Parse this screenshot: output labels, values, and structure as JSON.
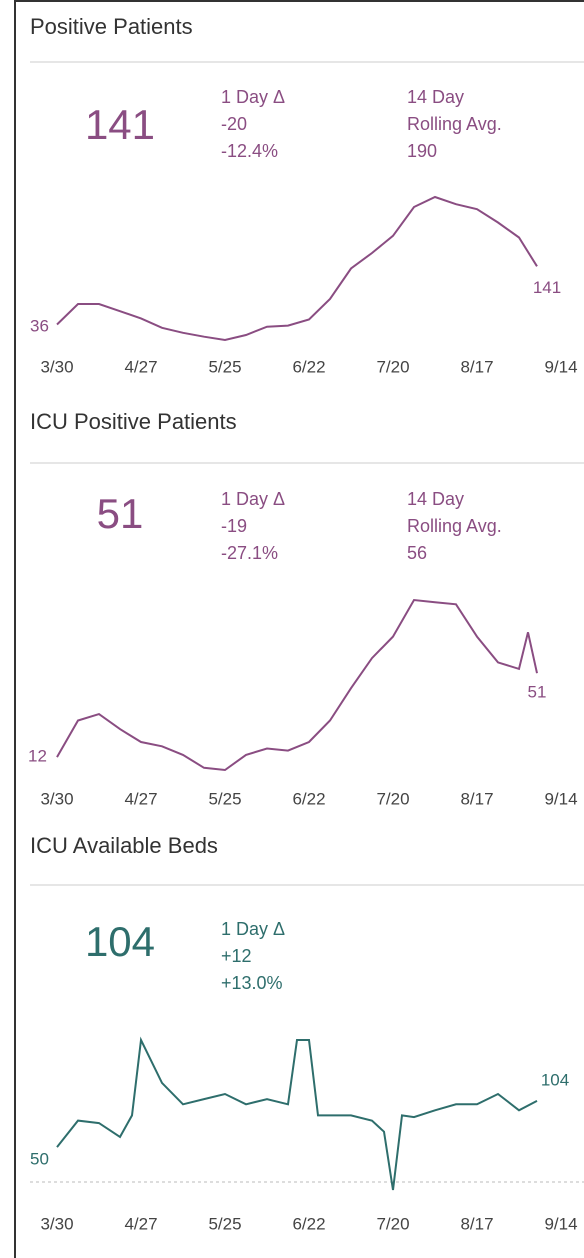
{
  "panels": [
    {
      "title": "Positive Patients",
      "current": 141,
      "delta_label": "1 Day Δ",
      "delta": "-20",
      "delta_pct": "-12.4%",
      "avg_label": [
        "14 Day",
        "Rolling Avg."
      ],
      "avg": 190,
      "chart_data": {
        "type": "line",
        "color": "#8a4d82",
        "x": [
          "3/30",
          "4/6",
          "4/13",
          "4/20",
          "4/27",
          "5/4",
          "5/11",
          "5/18",
          "5/25",
          "6/1",
          "6/8",
          "6/15",
          "6/22",
          "6/29",
          "7/6",
          "7/13",
          "7/20",
          "7/27",
          "8/3",
          "8/10",
          "8/17",
          "8/24",
          "8/31",
          "9/6"
        ],
        "values": [
          36,
          73,
          73,
          60,
          47,
          30,
          21,
          14,
          8,
          17,
          32,
          34,
          45,
          82,
          137,
          165,
          196,
          248,
          266,
          253,
          244,
          220,
          193,
          141
        ],
        "xticks": [
          "3/30",
          "4/27",
          "5/25",
          "6/22",
          "7/20",
          "8/17",
          "9/14"
        ]
      }
    },
    {
      "title": "ICU Positive Patients",
      "current": 51,
      "delta_label": "1 Day Δ",
      "delta": "-19",
      "delta_pct": "-27.1%",
      "avg_label": [
        "14 Day",
        "Rolling Avg."
      ],
      "avg": 56,
      "chart_data": {
        "type": "line",
        "color": "#8a4d82",
        "x": [
          "3/30",
          "4/6",
          "4/13",
          "4/20",
          "4/27",
          "5/4",
          "5/11",
          "5/18",
          "5/25",
          "6/1",
          "6/8",
          "6/15",
          "6/22",
          "6/29",
          "7/6",
          "7/13",
          "7/20",
          "7/27",
          "8/3",
          "8/10",
          "8/17",
          "8/24",
          "8/31",
          "9/3",
          "9/6"
        ],
        "values": [
          12,
          29,
          32,
          25,
          19,
          17,
          13,
          7,
          6,
          13,
          16,
          15,
          19,
          29,
          44,
          58,
          68,
          85,
          84,
          83,
          68,
          56,
          53,
          70,
          51
        ],
        "xticks": [
          "3/30",
          "4/27",
          "5/25",
          "6/22",
          "7/20",
          "8/17",
          "9/14"
        ]
      }
    },
    {
      "title": "ICU Available Beds",
      "current": 104,
      "delta_label": "1 Day Δ",
      "delta": "+12",
      "delta_pct": "+13.0%",
      "chart_data": {
        "type": "line",
        "color": "#2e6e6c",
        "x": [
          "3/30",
          "4/6",
          "4/13",
          "4/20",
          "4/24",
          "4/27",
          "5/4",
          "5/11",
          "5/18",
          "5/25",
          "6/1",
          "6/8",
          "6/15",
          "6/18",
          "6/22",
          "6/25",
          "7/6",
          "7/13",
          "7/17",
          "7/20",
          "7/23",
          "7/27",
          "8/3",
          "8/10",
          "8/17",
          "8/24",
          "8/31",
          "9/6"
        ],
        "values": [
          50,
          81,
          78,
          62,
          87,
          175,
          125,
          100,
          106,
          112,
          100,
          106,
          100,
          175,
          175,
          87,
          87,
          81,
          68,
          0,
          87,
          85,
          93,
          100,
          100,
          112,
          93,
          104
        ],
        "xticks": [
          "3/30",
          "4/27",
          "5/25",
          "6/22",
          "7/20",
          "8/17",
          "9/14"
        ]
      }
    }
  ]
}
